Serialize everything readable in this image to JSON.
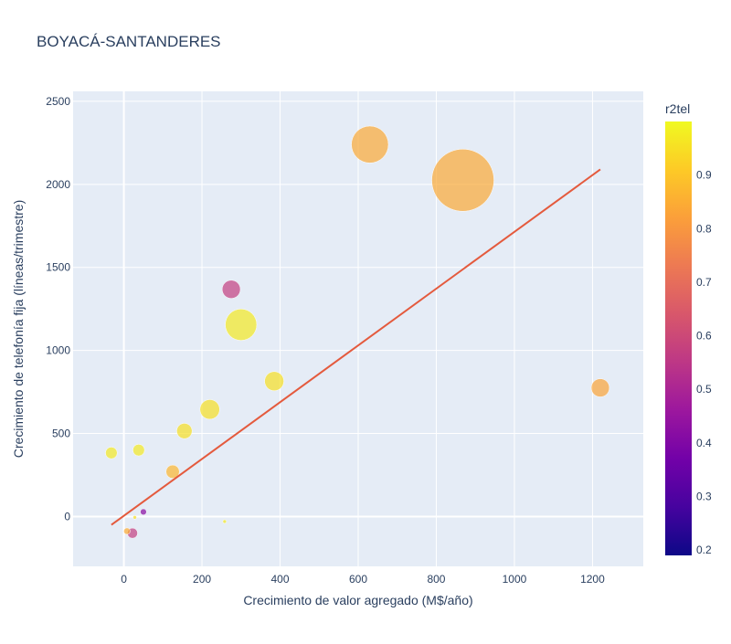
{
  "chart_data": {
    "type": "scatter",
    "title": "BOYACÁ-SANTANDERES",
    "xlabel": "Crecimiento de valor agregado (M$/año)",
    "ylabel": "Crecimiento de telefonía fija (líneas/trimestre)",
    "xlim": [
      -130,
      1330
    ],
    "ylim": [
      -300,
      2560
    ],
    "x_ticks": [
      0,
      200,
      400,
      600,
      800,
      1000,
      1200
    ],
    "y_ticks": [
      0,
      500,
      1000,
      1500,
      2000,
      2500
    ],
    "colorbar": {
      "title": "r2tel",
      "min": 0.19,
      "max": 1.0,
      "ticks": [
        0.2,
        0.3,
        0.4,
        0.5,
        0.6,
        0.7,
        0.8,
        0.9
      ],
      "colorscale": [
        "#0d0887",
        "#46039f",
        "#7201a8",
        "#9c179e",
        "#bd3786",
        "#d8576b",
        "#ed7953",
        "#fb9f3a",
        "#fdca26",
        "#f0f921"
      ]
    },
    "points": [
      {
        "x": 868,
        "y": 2025,
        "size": 8200,
        "color": 0.84
      },
      {
        "x": 630,
        "y": 2240,
        "size": 2900,
        "color": 0.84
      },
      {
        "x": 300,
        "y": 1155,
        "size": 2100,
        "color": 0.97
      },
      {
        "x": 275,
        "y": 1368,
        "size": 700,
        "color": 0.57
      },
      {
        "x": 1220,
        "y": 775,
        "size": 700,
        "color": 0.83
      },
      {
        "x": 385,
        "y": 815,
        "size": 780,
        "color": 0.95
      },
      {
        "x": 220,
        "y": 645,
        "size": 820,
        "color": 0.95
      },
      {
        "x": 155,
        "y": 515,
        "size": 500,
        "color": 0.95
      },
      {
        "x": 125,
        "y": 270,
        "size": 380,
        "color": 0.87
      },
      {
        "x": 38,
        "y": 400,
        "size": 290,
        "color": 0.97
      },
      {
        "x": -32,
        "y": 383,
        "size": 290,
        "color": 0.97
      },
      {
        "x": 22,
        "y": -100,
        "size": 220,
        "color": 0.57
      },
      {
        "x": 50,
        "y": 28,
        "size": 80,
        "color": 0.42
      },
      {
        "x": 8,
        "y": -88,
        "size": 90,
        "color": 0.85
      },
      {
        "x": 28,
        "y": -5,
        "size": 20,
        "color": 0.95
      },
      {
        "x": 258,
        "y": -30,
        "size": 15,
        "color": 0.97
      }
    ],
    "trendline": {
      "x": [
        -32,
        1220
      ],
      "y": [
        -50,
        2090
      ],
      "color": "#e45a3d"
    }
  }
}
